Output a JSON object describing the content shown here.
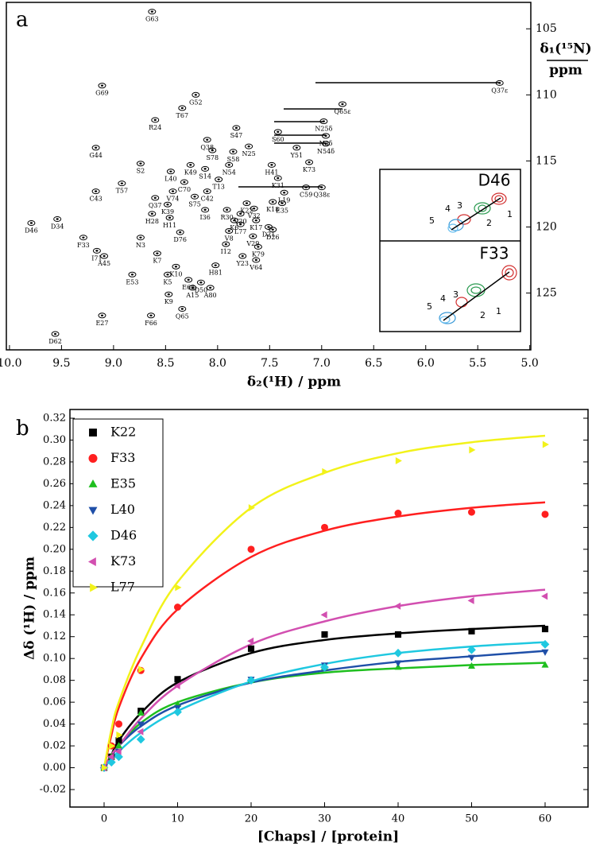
{
  "chart_data": [
    {
      "type": "spectrum",
      "panel_label": "a",
      "xlabel": "δ₂(¹H) / ppm",
      "ylabel": "δ₁(¹⁵N)",
      "ylabel_unit": "ppm",
      "xlim": [
        10.03,
        4.99
      ],
      "ylim": [
        103.0,
        129.3
      ],
      "xticks": [
        {
          "value": 10,
          "label": "10.0"
        },
        9.5,
        {
          "value": 9,
          "label": "9.0"
        },
        8.5,
        {
          "value": 8,
          "label": "8.0"
        },
        7.5,
        {
          "value": 7,
          "label": "7.0"
        },
        6.5,
        {
          "value": 6,
          "label": "6.0"
        },
        5.5,
        {
          "value": 5,
          "label": "5.0"
        }
      ],
      "yticks": [
        105,
        110,
        115,
        120,
        125
      ],
      "labels": [
        "G63",
        "G69",
        "G52",
        "T67",
        "R24",
        "Q37ε",
        "Q65ε",
        "S47",
        "G44",
        "L40",
        "S2",
        "K49",
        "S14",
        "T57",
        "C43",
        "C70",
        "V74",
        "Q37",
        "K39",
        "H28",
        "H11",
        "D46",
        "D34",
        "F33",
        "I71",
        "A45",
        "N3",
        "D76",
        "K7",
        "K10",
        "K5",
        "E53",
        "E68",
        "K9",
        "A15",
        "A80",
        "Q65",
        "F66",
        "E27",
        "D62",
        "I36",
        "S75",
        "C42",
        "T13",
        "R30",
        "V20",
        "K6",
        "V8",
        "I12",
        "D50",
        "H81",
        "K22",
        "L77",
        "K17",
        "D21",
        "V29",
        "K79",
        "V64",
        "Y23",
        "D26",
        "K18",
        "L19",
        "C59",
        "K31",
        "N54",
        "H41",
        "K73",
        "Y51",
        "E35",
        "S78",
        "S58",
        "Q38",
        "V32",
        "S60",
        "N25",
        "N25δ",
        "N3δ",
        "N54δ",
        "Q38ε"
      ],
      "x": [
        8.63,
        9.11,
        8.21,
        8.34,
        8.6,
        5.29,
        6.8,
        7.82,
        9.17,
        8.45,
        8.74,
        8.26,
        8.12,
        8.92,
        9.17,
        8.32,
        8.43,
        8.6,
        8.48,
        8.63,
        8.46,
        9.79,
        9.54,
        9.29,
        9.16,
        9.09,
        8.74,
        8.36,
        8.58,
        8.4,
        8.48,
        8.82,
        8.28,
        8.47,
        8.24,
        8.07,
        8.34,
        8.64,
        9.11,
        9.56,
        8.12,
        8.22,
        8.1,
        7.99,
        7.91,
        7.78,
        7.84,
        7.89,
        7.92,
        8.16,
        8.02,
        7.72,
        7.78,
        7.63,
        7.51,
        7.66,
        7.61,
        7.63,
        7.76,
        7.47,
        7.47,
        7.36,
        7.15,
        7.42,
        7.89,
        7.48,
        7.12,
        7.24,
        7.38,
        8.05,
        7.85,
        8.1,
        7.65,
        7.42,
        7.7,
        6.98,
        6.96,
        6.96,
        7.0
      ],
      "values": [
        103.7,
        109.3,
        110.0,
        111.0,
        111.9,
        109.1,
        110.7,
        112.5,
        114.0,
        115.8,
        115.2,
        115.3,
        115.6,
        116.7,
        117.3,
        116.6,
        117.3,
        117.8,
        118.3,
        119.0,
        119.3,
        119.7,
        119.4,
        120.8,
        121.8,
        122.2,
        120.8,
        120.4,
        122.0,
        123.0,
        123.6,
        123.6,
        124.0,
        125.1,
        124.6,
        124.6,
        126.2,
        126.7,
        126.7,
        128.1,
        118.7,
        117.7,
        117.3,
        116.4,
        118.7,
        119.0,
        119.5,
        120.3,
        121.3,
        124.2,
        122.9,
        118.2,
        119.8,
        119.5,
        120.0,
        120.7,
        121.5,
        122.5,
        122.2,
        120.2,
        118.1,
        117.4,
        117.0,
        116.3,
        115.3,
        115.3,
        115.1,
        114.0,
        118.2,
        114.2,
        114.3,
        113.4,
        118.6,
        112.8,
        113.9,
        112.0,
        113.1,
        113.7,
        117.0
      ],
      "inset": [
        {
          "title": "D46",
          "labels": [
            "1",
            "2",
            "3",
            "4",
            "5"
          ]
        },
        {
          "title": "F33",
          "labels": [
            "1",
            "2",
            "3",
            "4",
            "5"
          ]
        }
      ]
    },
    {
      "type": "scatter",
      "panel_label": "b",
      "xlabel": "[Chaps] / [protein]",
      "ylabel": "Δδ (¹H) / ppm",
      "xlim": [
        -4.65,
        65.84
      ],
      "ylim": [
        -0.036,
        0.328
      ],
      "xticks": [
        0,
        10,
        20,
        30,
        40,
        50,
        60
      ],
      "yticks": [
        -0.02,
        {
          "value": 0,
          "label": "0.00"
        },
        0.02,
        0.04,
        0.06,
        0.08,
        {
          "value": 0.1,
          "label": "0.10"
        },
        0.12,
        0.14,
        0.16,
        0.18,
        {
          "value": 0.2,
          "label": "0.20"
        },
        0.22,
        0.24,
        0.26,
        0.28,
        {
          "value": 0.3,
          "label": "0.30"
        },
        0.32
      ],
      "x": [
        0,
        1,
        2,
        5,
        10,
        20,
        30,
        40,
        50,
        60
      ],
      "series": [
        {
          "name": "K22",
          "color": "#000000",
          "marker": "square",
          "values": [
            0,
            0.01,
            0.025,
            0.052,
            0.081,
            0.109,
            0.122,
            0.122,
            0.125,
            0.127
          ],
          "fit": [
            0,
            0.012,
            0.025,
            0.05,
            0.078,
            0.105,
            0.117,
            0.123,
            0.127,
            0.13
          ]
        },
        {
          "name": "F33",
          "color": "#ff1f1f",
          "marker": "circle",
          "values": [
            0,
            0.02,
            0.04,
            0.089,
            0.147,
            0.2,
            0.22,
            0.233,
            0.234,
            0.232
          ],
          "fit": [
            0,
            0.03,
            0.055,
            0.1,
            0.145,
            0.193,
            0.217,
            0.23,
            0.238,
            0.243
          ]
        },
        {
          "name": "E35",
          "color": "#1fbf1f",
          "marker": "triangle-up",
          "values": [
            0,
            0.01,
            0.02,
            0.05,
            0.058,
            0.08,
            0.092,
            0.092,
            0.093,
            0.094
          ],
          "fit": [
            0,
            0.012,
            0.02,
            0.041,
            0.06,
            0.078,
            0.087,
            0.091,
            0.094,
            0.096
          ]
        },
        {
          "name": "L40",
          "color": "#1f4fa8",
          "marker": "triangle-down",
          "values": [
            0,
            0.008,
            0.015,
            0.04,
            0.055,
            0.081,
            0.094,
            0.096,
            0.101,
            0.106
          ],
          "fit": [
            0,
            0.01,
            0.02,
            0.038,
            0.057,
            0.078,
            0.089,
            0.097,
            0.102,
            0.107
          ]
        },
        {
          "name": "D46",
          "color": "#1fc8e0",
          "marker": "diamond",
          "values": [
            0,
            0.005,
            0.01,
            0.026,
            0.051,
            0.08,
            0.092,
            0.105,
            0.108,
            0.113
          ],
          "fit": [
            0,
            0.008,
            0.015,
            0.032,
            0.052,
            0.079,
            0.095,
            0.105,
            0.111,
            0.115
          ]
        },
        {
          "name": "K73",
          "color": "#d24fb0",
          "marker": "triangle-left",
          "values": [
            0,
            0.01,
            0.015,
            0.033,
            0.075,
            0.116,
            0.14,
            0.148,
            0.153,
            0.157
          ],
          "fit": [
            0,
            0.012,
            0.02,
            0.045,
            0.075,
            0.113,
            0.134,
            0.148,
            0.157,
            0.163
          ]
        },
        {
          "name": "L77",
          "color": "#f2f21a",
          "marker": "triangle-right",
          "values": [
            0,
            0.02,
            0.03,
            0.09,
            0.165,
            0.238,
            0.271,
            0.281,
            0.291,
            0.296
          ],
          "fit": [
            0,
            0.035,
            0.06,
            0.11,
            0.17,
            0.238,
            0.27,
            0.288,
            0.298,
            0.304
          ]
        }
      ]
    }
  ]
}
